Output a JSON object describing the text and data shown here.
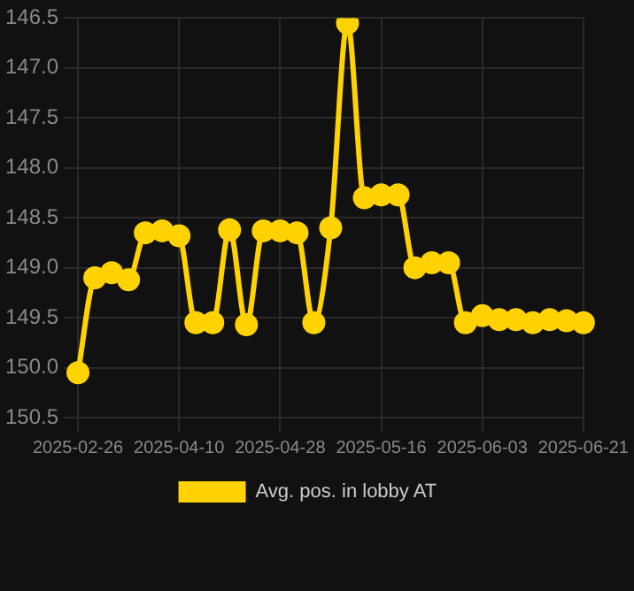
{
  "chart_data": {
    "type": "line",
    "categories": [
      "2025-02-26",
      null,
      null,
      null,
      null,
      null,
      "2025-04-10",
      null,
      null,
      null,
      null,
      null,
      "2025-04-28",
      null,
      null,
      null,
      null,
      null,
      "2025-05-16",
      null,
      null,
      null,
      null,
      null,
      "2025-06-03",
      null,
      null,
      null,
      null,
      null,
      "2025-06-21"
    ],
    "series": [
      {
        "name": "Avg. pos. in lobby AT",
        "color": "#ffd200",
        "values": [
          150.05,
          149.1,
          149.05,
          149.12,
          148.65,
          148.63,
          148.68,
          149.55,
          149.55,
          148.62,
          149.57,
          148.63,
          148.63,
          148.65,
          149.55,
          148.6,
          146.55,
          148.3,
          148.27,
          148.27,
          149.0,
          148.95,
          148.95,
          149.55,
          149.48,
          149.52,
          149.52,
          149.55,
          149.52,
          149.53,
          149.55
        ]
      }
    ],
    "ylim": [
      150.5,
      146.5
    ],
    "yticks": [
      {
        "value": 146.5,
        "label": "146.5"
      },
      {
        "value": 147,
        "label": "147.0"
      },
      {
        "value": 147.5,
        "label": "147.5"
      },
      {
        "value": 148,
        "label": "148.0"
      },
      {
        "value": 148.5,
        "label": "148.5"
      },
      {
        "value": 149,
        "label": "149.0"
      },
      {
        "value": 149.5,
        "label": "149.5"
      },
      {
        "value": 150,
        "label": "150.0"
      },
      {
        "value": 150.5,
        "label": "150.5"
      }
    ],
    "grid": true,
    "legend": "bottom",
    "marker": "circle",
    "line_style": "solid"
  }
}
